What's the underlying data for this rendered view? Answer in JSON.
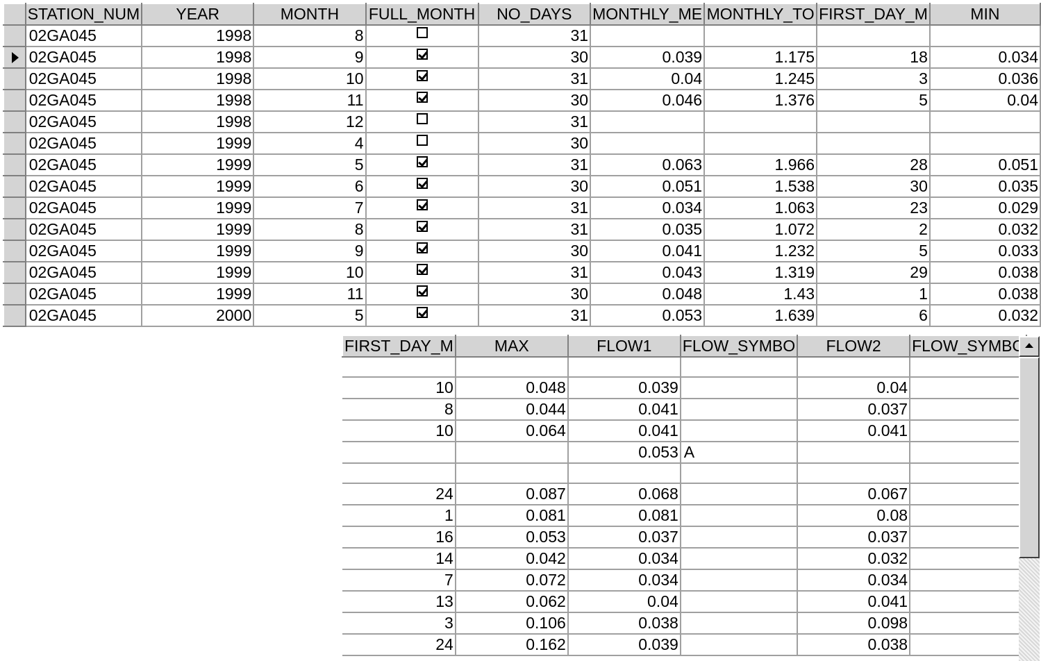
{
  "grid1": {
    "columns": [
      "STATION_NUM",
      "YEAR",
      "MONTH",
      "FULL_MONTH",
      "NO_DAYS",
      "MONTHLY_ME",
      "MONTHLY_TO",
      "FIRST_DAY_M",
      "MIN"
    ],
    "rows": [
      [
        "02GA045",
        "1998",
        "8",
        false,
        "31",
        "",
        "",
        "",
        ""
      ],
      [
        "02GA045",
        "1998",
        "9",
        true,
        "30",
        "0.039",
        "1.175",
        "18",
        "0.034"
      ],
      [
        "02GA045",
        "1998",
        "10",
        true,
        "31",
        "0.04",
        "1.245",
        "3",
        "0.036"
      ],
      [
        "02GA045",
        "1998",
        "11",
        true,
        "30",
        "0.046",
        "1.376",
        "5",
        "0.04"
      ],
      [
        "02GA045",
        "1998",
        "12",
        false,
        "31",
        "",
        "",
        "",
        ""
      ],
      [
        "02GA045",
        "1999",
        "4",
        false,
        "30",
        "",
        "",
        "",
        ""
      ],
      [
        "02GA045",
        "1999",
        "5",
        true,
        "31",
        "0.063",
        "1.966",
        "28",
        "0.051"
      ],
      [
        "02GA045",
        "1999",
        "6",
        true,
        "30",
        "0.051",
        "1.538",
        "30",
        "0.035"
      ],
      [
        "02GA045",
        "1999",
        "7",
        true,
        "31",
        "0.034",
        "1.063",
        "23",
        "0.029"
      ],
      [
        "02GA045",
        "1999",
        "8",
        true,
        "31",
        "0.035",
        "1.072",
        "2",
        "0.032"
      ],
      [
        "02GA045",
        "1999",
        "9",
        true,
        "30",
        "0.041",
        "1.232",
        "5",
        "0.033"
      ],
      [
        "02GA045",
        "1999",
        "10",
        true,
        "31",
        "0.043",
        "1.319",
        "29",
        "0.038"
      ],
      [
        "02GA045",
        "1999",
        "11",
        true,
        "30",
        "0.048",
        "1.43",
        "1",
        "0.038"
      ],
      [
        "02GA045",
        "2000",
        "5",
        true,
        "31",
        "0.053",
        "1.639",
        "6",
        "0.032"
      ]
    ],
    "current_row": 1
  },
  "grid2": {
    "columns": [
      "FIRST_DAY_M",
      "MAX",
      "FLOW1",
      "FLOW_SYMBO",
      "FLOW2",
      "FLOW_SYMBO"
    ],
    "rows": [
      [
        "",
        "",
        "",
        "",
        "",
        ""
      ],
      [
        "10",
        "0.048",
        "0.039",
        "",
        "0.04",
        ""
      ],
      [
        "8",
        "0.044",
        "0.041",
        "",
        "0.037",
        ""
      ],
      [
        "10",
        "0.064",
        "0.041",
        "",
        "0.041",
        ""
      ],
      [
        "",
        "",
        "0.053",
        "A",
        "",
        ""
      ],
      [
        "",
        "",
        "",
        "",
        "",
        ""
      ],
      [
        "24",
        "0.087",
        "0.068",
        "",
        "0.067",
        ""
      ],
      [
        "1",
        "0.081",
        "0.081",
        "",
        "0.08",
        ""
      ],
      [
        "16",
        "0.053",
        "0.037",
        "",
        "0.037",
        ""
      ],
      [
        "14",
        "0.042",
        "0.034",
        "",
        "0.032",
        ""
      ],
      [
        "7",
        "0.072",
        "0.034",
        "",
        "0.034",
        ""
      ],
      [
        "13",
        "0.062",
        "0.04",
        "",
        "0.041",
        ""
      ],
      [
        "3",
        "0.106",
        "0.038",
        "",
        "0.098",
        ""
      ],
      [
        "24",
        "0.162",
        "0.039",
        "",
        "0.038",
        ""
      ]
    ]
  },
  "icons": {
    "row_pointer": "triangle-right-icon",
    "scroll_up": "arrow-up-icon"
  }
}
